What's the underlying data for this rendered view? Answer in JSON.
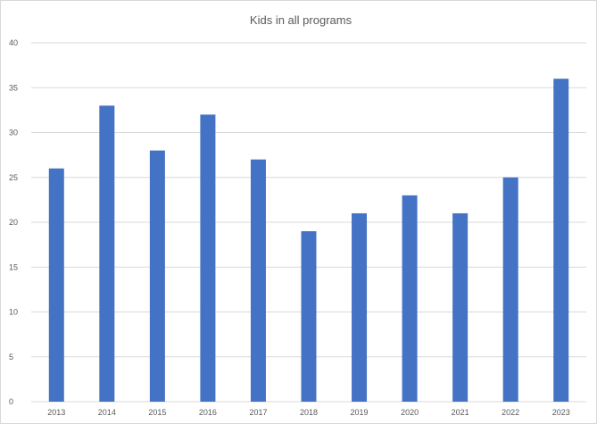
{
  "chart_data": {
    "type": "bar",
    "title": "Kids in all programs",
    "xlabel": "",
    "ylabel": "",
    "categories": [
      "2013",
      "2014",
      "2015",
      "2016",
      "2017",
      "2018",
      "2019",
      "2020",
      "2021",
      "2022",
      "2023"
    ],
    "values": [
      26,
      33,
      28,
      32,
      27,
      19,
      21,
      23,
      21,
      25,
      36
    ],
    "ylim": [
      0,
      40
    ],
    "yticks": [
      0,
      5,
      10,
      15,
      20,
      25,
      30,
      35,
      40
    ],
    "grid": true,
    "legend": "none",
    "bar_color": "#4472c4",
    "grid_color": "#d9d9d9"
  }
}
